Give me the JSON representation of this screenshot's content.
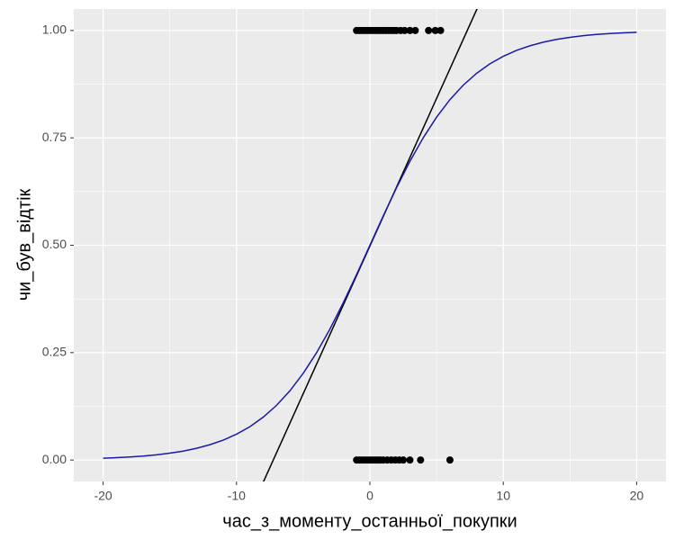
{
  "chart_data": {
    "type": "scatter",
    "x_label": "час_з_моменту_останньої_покупки",
    "y_label": "чи_був_відтік",
    "xlim": [
      -22.2,
      22.2
    ],
    "ylim": [
      -0.05,
      1.05
    ],
    "xticks": [
      -20,
      -10,
      0,
      10,
      20
    ],
    "yticks": [
      {
        "value": 0,
        "label": "0.00"
      },
      {
        "value": 0.25,
        "label": "0.25"
      },
      {
        "value": 0.5,
        "label": "0.50"
      },
      {
        "value": 0.75,
        "label": "0.75"
      },
      {
        "value": 1,
        "label": "1.00"
      }
    ],
    "grid": true,
    "points": {
      "color": "#000000",
      "x": [
        -1.0,
        -0.8,
        -0.6,
        -0.4,
        -0.2,
        0.0,
        0.2,
        0.4,
        0.6,
        0.8,
        1.0,
        1.2,
        1.4,
        1.6,
        1.8,
        2.0,
        2.3,
        2.6,
        3.0,
        3.4,
        4.4,
        4.9,
        5.3,
        -1.0,
        -0.8,
        -0.6,
        -0.4,
        -0.2,
        0.0,
        0.2,
        0.4,
        0.6,
        0.8,
        1.0,
        1.3,
        1.6,
        1.9,
        2.2,
        2.5,
        3.0,
        3.8,
        6.0
      ],
      "y": [
        1,
        1,
        1,
        1,
        1,
        1,
        1,
        1,
        1,
        1,
        1,
        1,
        1,
        1,
        1,
        1,
        1,
        1,
        1,
        1,
        1,
        1,
        1,
        0,
        0,
        0,
        0,
        0,
        0,
        0,
        0,
        0,
        0,
        0,
        0,
        0,
        0,
        0,
        0,
        0,
        0,
        0
      ]
    },
    "lines": [
      {
        "color": "#000000",
        "x": [
          -8.7,
          8.9
        ],
        "y": [
          -0.1,
          1.11
        ]
      },
      {
        "color": "#1a1aaa",
        "x": [
          -20,
          -19,
          -18,
          -17,
          -16,
          -15,
          -14,
          -13,
          -12,
          -11,
          -10,
          -9,
          -8,
          -7,
          -6,
          -5,
          -4,
          -3,
          -2,
          -1,
          0,
          1,
          2,
          3,
          4,
          5,
          6,
          7,
          8,
          9,
          10,
          11,
          12,
          13,
          14,
          15,
          16,
          17,
          18,
          19,
          20
        ],
        "y": [
          0.0041,
          0.0054,
          0.007,
          0.0092,
          0.0121,
          0.0159,
          0.0208,
          0.0273,
          0.0356,
          0.0463,
          0.0601,
          0.0776,
          0.0998,
          0.1273,
          0.161,
          0.2018,
          0.2497,
          0.3047,
          0.366,
          0.4317,
          0.5,
          0.5683,
          0.634,
          0.6953,
          0.7503,
          0.7982,
          0.839,
          0.8727,
          0.9002,
          0.9224,
          0.9399,
          0.9537,
          0.9644,
          0.9727,
          0.9792,
          0.9841,
          0.9879,
          0.9908,
          0.993,
          0.9946,
          0.9959
        ]
      }
    ]
  }
}
